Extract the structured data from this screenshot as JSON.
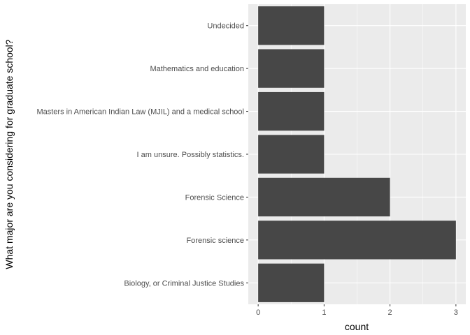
{
  "chart_data": {
    "type": "bar",
    "orientation": "horizontal",
    "categories": [
      "Biology, or Criminal Justice Studies",
      "Forensic science",
      "Forensic Science",
      "I am unsure. Possibly statistics.",
      "Masters in American Indian Law (MJIL)  and a medical school",
      "Mathematics and education",
      "Undecided"
    ],
    "values": [
      1,
      3,
      2,
      1,
      1,
      1,
      1
    ],
    "xlabel": "count",
    "ylabel": "What major are you considering for graduate school?",
    "xlim": [
      0,
      3
    ],
    "xticks": [
      "0",
      "1",
      "2",
      "3"
    ],
    "grid": true,
    "legend": "none",
    "colors": {
      "panel_bg": "#ebebeb",
      "grid": "#ffffff",
      "bar": "#474747",
      "tick_text": "#4d4d4d",
      "title_text": "#000000"
    }
  }
}
